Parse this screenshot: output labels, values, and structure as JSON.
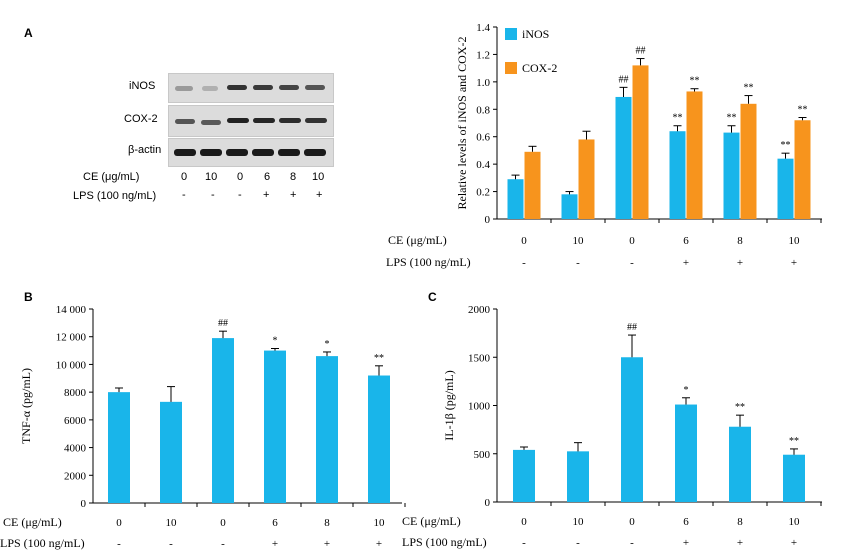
{
  "panels": {
    "a": "A",
    "b": "B",
    "c": "C"
  },
  "western_blot": {
    "rows": [
      "iNOS",
      "COX-2",
      "β-actin"
    ],
    "ce_label": "CE (μg/mL)",
    "lps_label": "LPS (100 ng/mL)",
    "ce_values": [
      "0",
      "10",
      "0",
      "6",
      "8",
      "10"
    ],
    "lps_values": [
      "-",
      "-",
      "-",
      "+",
      "+",
      "+"
    ]
  },
  "colors": {
    "blue": "#19b5ea",
    "orange": "#f7941d"
  },
  "chart_data": [
    {
      "type": "bar",
      "panel": "A",
      "categories": [
        "0",
        "10",
        "0",
        "6",
        "8",
        "10"
      ],
      "lps": [
        "-",
        "-",
        "-",
        "+",
        "+",
        "+"
      ],
      "series": [
        {
          "name": "iNOS",
          "values": [
            0.29,
            0.18,
            0.89,
            0.64,
            0.63,
            0.44
          ],
          "errors": [
            0.03,
            0.02,
            0.07,
            0.04,
            0.05,
            0.04
          ],
          "marks": [
            "",
            "",
            "##",
            "**",
            "**",
            "**"
          ]
        },
        {
          "name": "COX-2",
          "values": [
            0.49,
            0.58,
            1.12,
            0.93,
            0.84,
            0.72
          ],
          "errors": [
            0.04,
            0.06,
            0.05,
            0.02,
            0.06,
            0.02
          ],
          "marks": [
            "",
            "",
            "##",
            "**",
            "**",
            "**"
          ]
        }
      ],
      "ylabel": "Relative levels of iNOS and COX-2",
      "ylim": [
        0,
        1.4
      ],
      "yticks": [
        "0",
        "0.2",
        "0.4",
        "0.6",
        "0.8",
        "1.0",
        "1.2",
        "1.4"
      ],
      "ce_label": "CE (μg/mL)",
      "lps_label": "LPS (100 ng/mL)",
      "legend": "top-left"
    },
    {
      "type": "bar",
      "panel": "B",
      "categories": [
        "0",
        "10",
        "0",
        "6",
        "8",
        "10"
      ],
      "lps": [
        "-",
        "-",
        "-",
        "+",
        "+",
        "+"
      ],
      "series": [
        {
          "values": [
            8000,
            7300,
            11900,
            11000,
            10600,
            9200
          ],
          "errors": [
            300,
            1100,
            500,
            150,
            300,
            700
          ],
          "marks": [
            "",
            "",
            "##",
            "*",
            "*",
            "**"
          ]
        }
      ],
      "ylabel": "TNF-α (pg/mL)",
      "ylim": [
        0,
        14000
      ],
      "yticks": [
        "0",
        "2000",
        "4000",
        "6000",
        "8000",
        "10 000",
        "12 000",
        "14 000"
      ],
      "ce_label": "CE (μg/mL)",
      "lps_label": "LPS (100 ng/mL)"
    },
    {
      "type": "bar",
      "panel": "C",
      "categories": [
        "0",
        "10",
        "0",
        "6",
        "8",
        "10"
      ],
      "lps": [
        "-",
        "-",
        "-",
        "+",
        "+",
        "+"
      ],
      "series": [
        {
          "values": [
            540,
            525,
            1500,
            1010,
            780,
            490
          ],
          "errors": [
            30,
            90,
            230,
            70,
            120,
            60
          ],
          "marks": [
            "",
            "",
            "##",
            "*",
            "**",
            "**"
          ]
        }
      ],
      "ylabel": "IL-1β (pg/mL)",
      "ylim": [
        0,
        2000
      ],
      "yticks": [
        "0",
        "500",
        "1000",
        "1500",
        "2000"
      ],
      "ce_label": "CE (μg/mL)",
      "lps_label": "LPS (100 ng/mL)"
    }
  ]
}
